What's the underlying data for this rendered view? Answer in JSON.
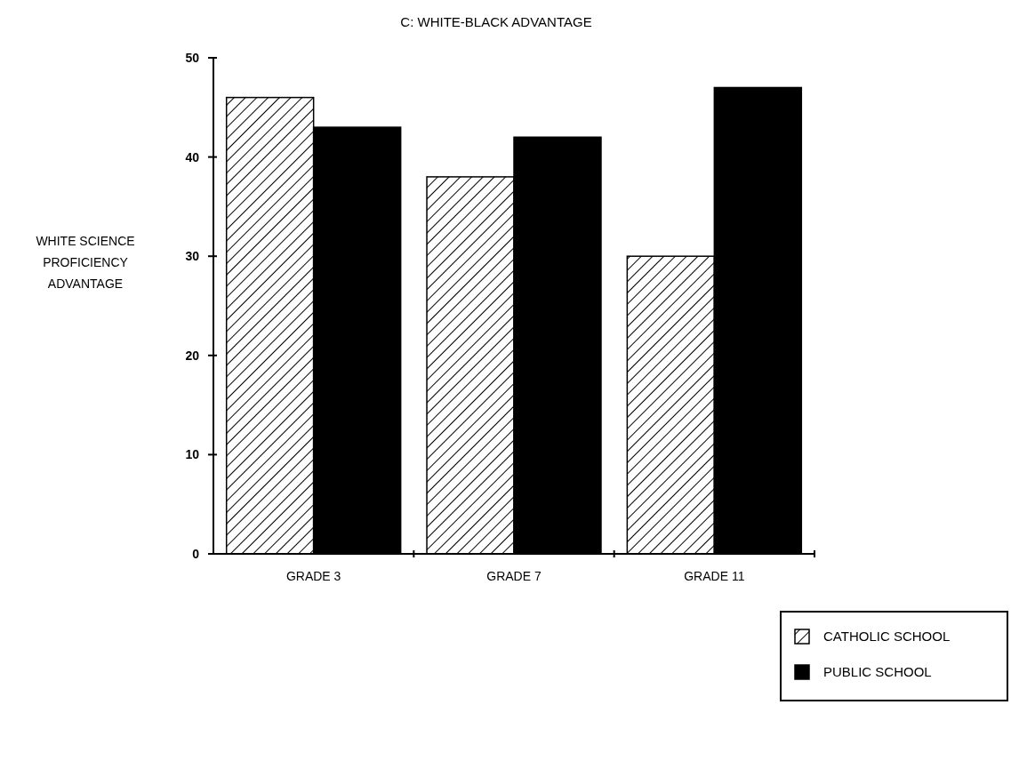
{
  "chart_data": {
    "type": "bar",
    "title": "C: WHITE-BLACK ADVANTAGE",
    "ylabel": "WHITE SCIENCE\nPROFICIENCY\nADVANTAGE",
    "categories": [
      "GRADE 3",
      "GRADE 7",
      "GRADE 11"
    ],
    "series": [
      {
        "name": "CATHOLIC SCHOOL",
        "color": "#000000",
        "values": [
          46,
          38,
          30
        ]
      },
      {
        "name": "PUBLIC SCHOOL",
        "color": "#000000",
        "values": [
          43,
          42,
          47
        ]
      }
    ],
    "ylim": [
      0,
      50
    ],
    "yticks": [
      0,
      10,
      20,
      30,
      40,
      50
    ],
    "legend": "bottom right"
  }
}
